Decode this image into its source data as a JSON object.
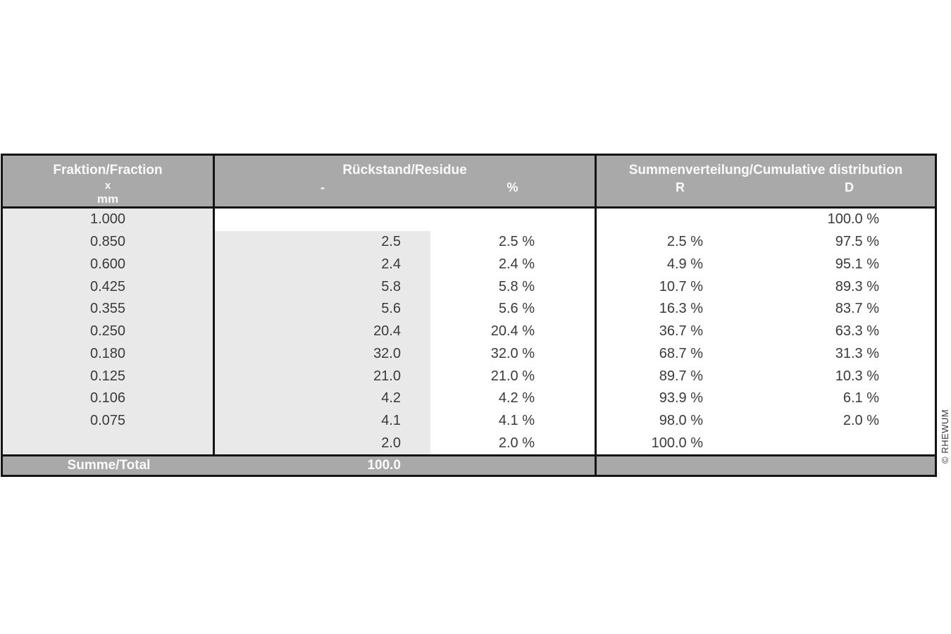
{
  "chart_data": {
    "type": "table",
    "title": "Sieve analysis fraction table",
    "header": {
      "fraction": {
        "title": "Fraktion/Fraction",
        "symbol": "x",
        "unit": "mm"
      },
      "residue": {
        "title": "Rückstand/Residue",
        "sub_left": "-",
        "sub_right": "%"
      },
      "cumulative": {
        "title": "Summenverteilung/Cumulative distribution",
        "sub_left": "R",
        "sub_right": "D"
      }
    },
    "rows": [
      {
        "fraction": "1.000",
        "residue": "",
        "residue_pct": "",
        "r": "",
        "d": "100.0 %"
      },
      {
        "fraction": "0.850",
        "residue": "2.5",
        "residue_pct": "2.5 %",
        "r": "2.5 %",
        "d": "97.5 %"
      },
      {
        "fraction": "0.600",
        "residue": "2.4",
        "residue_pct": "2.4 %",
        "r": "4.9 %",
        "d": "95.1 %"
      },
      {
        "fraction": "0.425",
        "residue": "5.8",
        "residue_pct": "5.8 %",
        "r": "10.7 %",
        "d": "89.3 %"
      },
      {
        "fraction": "0.355",
        "residue": "5.6",
        "residue_pct": "5.6 %",
        "r": "16.3 %",
        "d": "83.7 %"
      },
      {
        "fraction": "0.250",
        "residue": "20.4",
        "residue_pct": "20.4 %",
        "r": "36.7 %",
        "d": "63.3 %"
      },
      {
        "fraction": "0.180",
        "residue": "32.0",
        "residue_pct": "32.0 %",
        "r": "68.7 %",
        "d": "31.3 %"
      },
      {
        "fraction": "0.125",
        "residue": "21.0",
        "residue_pct": "21.0 %",
        "r": "89.7 %",
        "d": "10.3 %"
      },
      {
        "fraction": "0.106",
        "residue": "4.2",
        "residue_pct": "4.2 %",
        "r": "93.9 %",
        "d": "6.1 %"
      },
      {
        "fraction": "0.075",
        "residue": "4.1",
        "residue_pct": "4.1 %",
        "r": "98.0 %",
        "d": "2.0 %"
      },
      {
        "fraction": "",
        "residue": "2.0",
        "residue_pct": "2.0 %",
        "r": "100.0 %",
        "d": ""
      }
    ],
    "footer": {
      "label": "Summe/Total",
      "residue_total": "100.0"
    },
    "layout_hints": {
      "grid": "off",
      "row_lines": "none",
      "column_dividers": "black 3px"
    }
  },
  "colors": {
    "header_bg": "#a9a9a9",
    "footer_bg": "#a9a9a9",
    "shaded_column_bg": "#e9e9e9",
    "border": "#141414",
    "data_text": "#3a3a3a",
    "header_text": "#fafafa"
  },
  "watermark": "© RHEWUM"
}
